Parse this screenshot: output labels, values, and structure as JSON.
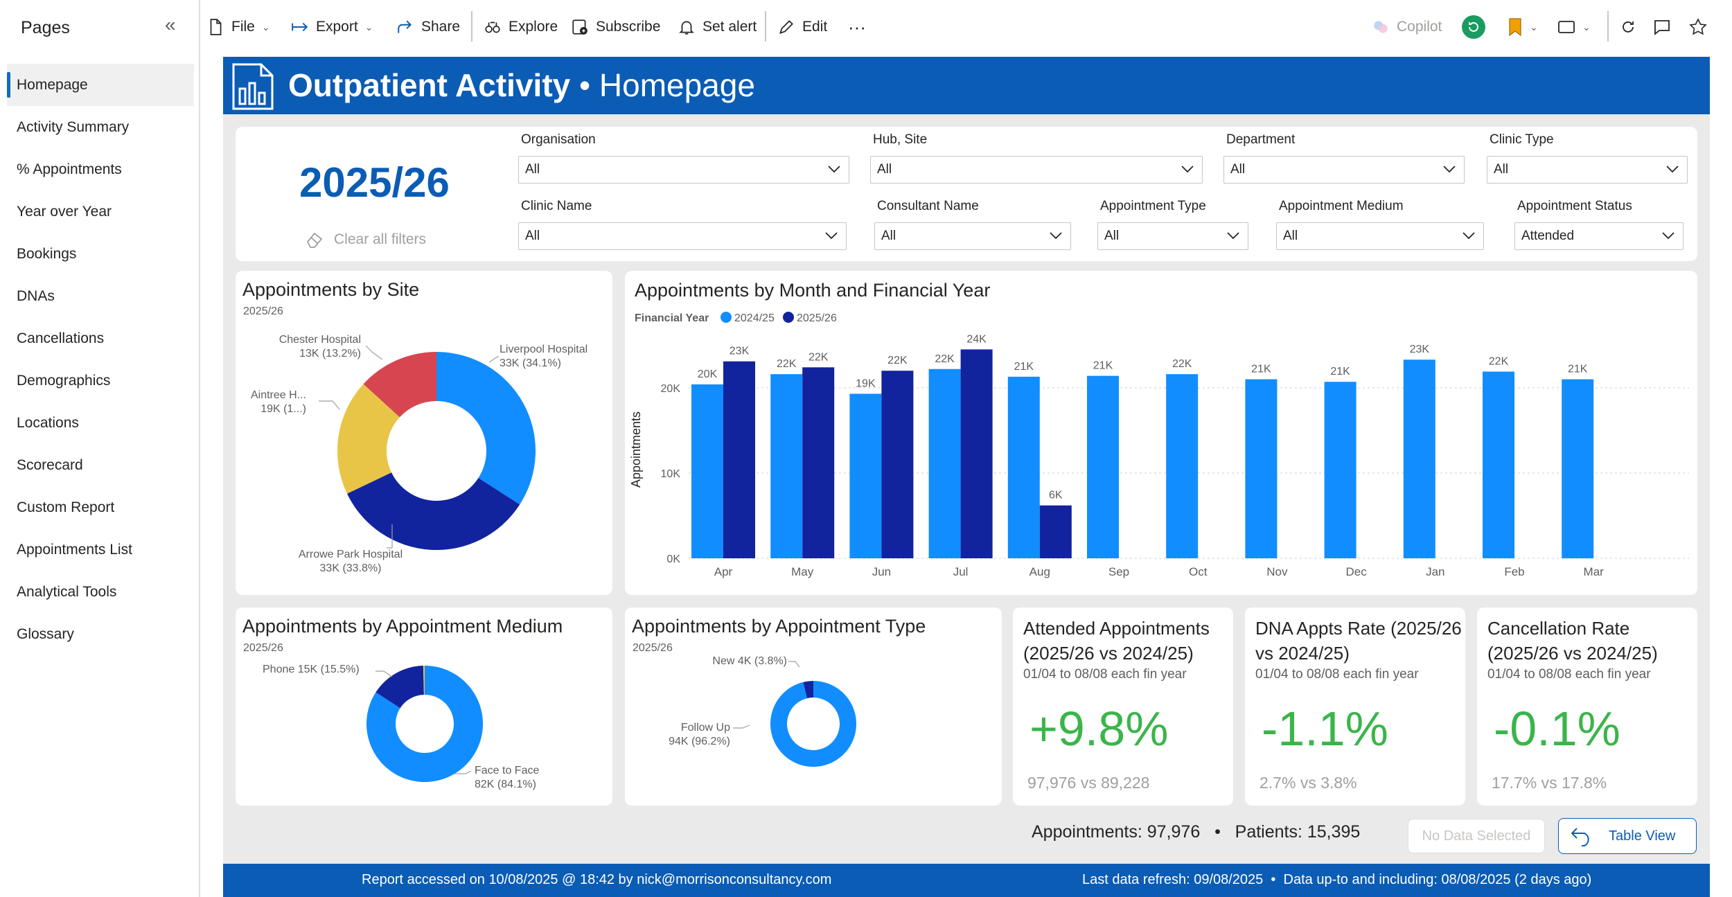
{
  "sidebar": {
    "title": "Pages",
    "collapse_icon": "double-chevron-left-icon",
    "items": [
      {
        "label": "Homepage",
        "active": true
      },
      {
        "label": "Activity Summary"
      },
      {
        "label": "% Appointments"
      },
      {
        "label": "Year over Year"
      },
      {
        "label": "Bookings"
      },
      {
        "label": "DNAs"
      },
      {
        "label": "Cancellations"
      },
      {
        "label": "Demographics"
      },
      {
        "label": "Locations"
      },
      {
        "label": "Scorecard"
      },
      {
        "label": "Custom Report"
      },
      {
        "label": "Appointments List"
      },
      {
        "label": "Analytical Tools"
      },
      {
        "label": "Glossary"
      }
    ]
  },
  "toolbar": {
    "file": "File",
    "export": "Export",
    "share": "Share",
    "explore": "Explore",
    "subscribe": "Subscribe",
    "set_alert": "Set alert",
    "edit": "Edit",
    "more": "···",
    "copilot": "Copilot"
  },
  "banner": {
    "title_bold": "Outpatient Activity",
    "separator": " • ",
    "title_light": "Homepage"
  },
  "filters": {
    "year": "2025/26",
    "clear_label": "Clear all filters",
    "fields": [
      {
        "label": "Organisation",
        "value": "All"
      },
      {
        "label": "Hub, Site",
        "value": "All"
      },
      {
        "label": "Department",
        "value": "All"
      },
      {
        "label": "Clinic Type",
        "value": "All"
      },
      {
        "label": "Clinic Name",
        "value": "All"
      },
      {
        "label": "Consultant Name",
        "value": "All"
      },
      {
        "label": "Appointment Type",
        "value": "All"
      },
      {
        "label": "Appointment Medium",
        "value": "All"
      },
      {
        "label": "Appointment Status",
        "value": "Attended"
      }
    ]
  },
  "colors": {
    "brand_blue": "#0b5cb4",
    "series_2024": "#118dff",
    "series_2025": "#12239e",
    "kpi_green": "#3bb54a",
    "site_red": "#d64550",
    "site_yellow": "#e8c547"
  },
  "chart_data": [
    {
      "type": "pie",
      "title": "Appointments by Site",
      "subtitle": "2025/26",
      "slices": [
        {
          "label": "Liverpool Hospital",
          "value_label": "33K (34.1%)",
          "percent": 34.1,
          "color": "#118dff"
        },
        {
          "label": "Arrowe Park Hospital",
          "value_label": "33K (33.8%)",
          "percent": 33.8,
          "color": "#12239e"
        },
        {
          "label": "Aintree H...",
          "value_label": "19K (1...)",
          "percent": 18.9,
          "color": "#e8c547"
        },
        {
          "label": "Chester Hospital",
          "value_label": "13K (13.2%)",
          "percent": 13.2,
          "color": "#d64550"
        }
      ]
    },
    {
      "type": "bar",
      "title": "Appointments by Month and Financial Year",
      "legend_title": "Financial Year",
      "ylabel": "Appointments",
      "ylim": [
        0,
        26000
      ],
      "yticks": [
        "0K",
        "10K",
        "20K"
      ],
      "categories": [
        "Apr",
        "May",
        "Jun",
        "Jul",
        "Aug",
        "Sep",
        "Oct",
        "Nov",
        "Dec",
        "Jan",
        "Feb",
        "Mar"
      ],
      "series": [
        {
          "name": "2024/25",
          "color": "#118dff",
          "values": [
            20400,
            21600,
            19300,
            22200,
            21300,
            21400,
            21600,
            21000,
            20700,
            23300,
            21900,
            21000
          ],
          "labels": [
            "20K",
            "22K",
            "19K",
            "22K",
            "21K",
            "21K",
            "22K",
            "21K",
            "21K",
            "23K",
            "22K",
            "21K"
          ]
        },
        {
          "name": "2025/26",
          "color": "#12239e",
          "values": [
            23100,
            22400,
            22000,
            24500,
            6200,
            null,
            null,
            null,
            null,
            null,
            null,
            null
          ],
          "labels": [
            "23K",
            "22K",
            "22K",
            "24K",
            "6K",
            "",
            "",
            "",
            "",
            "",
            "",
            ""
          ]
        }
      ]
    },
    {
      "type": "pie",
      "title": "Appointments by Appointment Medium",
      "subtitle": "2025/26",
      "slices": [
        {
          "label": "Face to Face",
          "value_label": "82K (84.1%)",
          "percent": 84.1,
          "color": "#118dff"
        },
        {
          "label": "Phone",
          "value_label": "15K (15.5%)",
          "percent": 15.5,
          "color": "#12239e"
        },
        {
          "label": "",
          "value_label": "",
          "percent": 0.4,
          "color": "#e8c547"
        }
      ]
    },
    {
      "type": "pie",
      "title": "Appointments by Appointment Type",
      "subtitle": "2025/26",
      "slices": [
        {
          "label": "Follow Up",
          "value_label": "94K (96.2%)",
          "percent": 96.2,
          "color": "#118dff"
        },
        {
          "label": "New",
          "value_label": "4K (3.8%)",
          "percent": 3.8,
          "color": "#12239e"
        }
      ]
    }
  ],
  "kpis": [
    {
      "title": "Attended Appointments (2025/26 vs 2024/25)",
      "sub": "01/04 to 08/08 each fin year",
      "value": "+9.8%",
      "compare": "97,976 vs 89,228"
    },
    {
      "title": "DNA Appts Rate (2025/26 vs 2024/25)",
      "sub": "01/04 to 08/08 each fin year",
      "value": "-1.1%",
      "compare": "2.7% vs 3.8%"
    },
    {
      "title": "Cancellation Rate (2025/26 vs 2024/25)",
      "sub": "01/04 to 08/08 each fin year",
      "value": "-0.1%",
      "compare": "17.7% vs 17.8%"
    }
  ],
  "totals": {
    "text": "Appointments: 97,976   •   Patients: 15,395"
  },
  "buttons": {
    "no_data": "No Data Selected",
    "table_view": "Table View"
  },
  "footer": {
    "accessed": "Report accessed on 10/08/2025 @ 18:42 by nick@morrisonconsultancy.com",
    "refresh": "Last data refresh: 09/08/2025  •  Data up-to and including: 08/08/2025 (2 days ago)"
  }
}
